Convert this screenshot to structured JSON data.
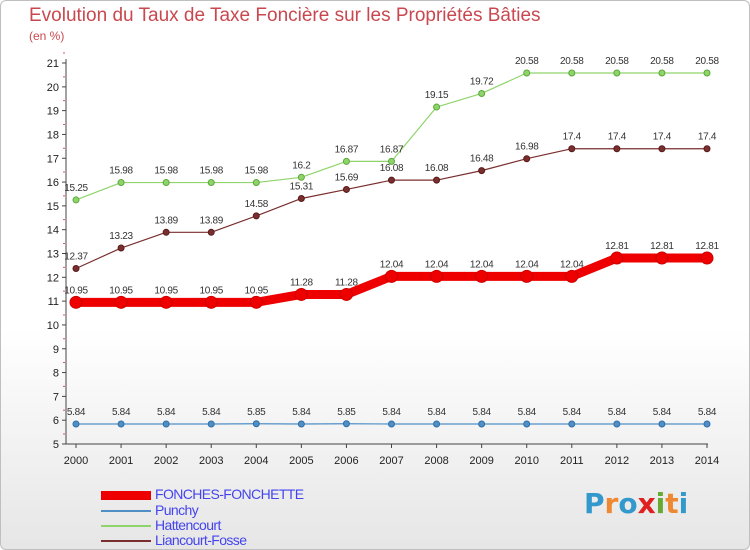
{
  "title": "Evolution du Taux de Taxe Foncière sur les Propriétés Bâties",
  "subtitle": "(en %)",
  "logo": {
    "letters": [
      "P",
      "r",
      "o",
      "x",
      "i",
      "t",
      "i"
    ],
    "colors": [
      "#3399cc",
      "#ee8833",
      "#3399cc",
      "#e02020",
      "#66aa33",
      "#ee8833",
      "#3399cc"
    ]
  },
  "chart_data": {
    "type": "line",
    "title": "Evolution du Taux de Taxe Foncière sur les Propriétés Bâties",
    "ylabel": "(en %)",
    "xlabel": "",
    "x": [
      "2000",
      "2001",
      "2002",
      "2003",
      "2004",
      "2005",
      "2006",
      "2007",
      "2008",
      "2009",
      "2010",
      "2011",
      "2012",
      "2013",
      "2014"
    ],
    "ylim": [
      5,
      21
    ],
    "yticks": [
      "5",
      "6",
      "7",
      "8",
      "9",
      "10",
      "11",
      "12",
      "13",
      "14",
      "15",
      "16",
      "17",
      "18",
      "19",
      "20",
      "21"
    ],
    "series": [
      {
        "name": "FONCHES-FONCHETTE",
        "color": "#ee0000",
        "values": [
          10.95,
          10.95,
          10.95,
          10.95,
          10.95,
          11.28,
          11.28,
          12.04,
          12.04,
          12.04,
          12.04,
          12.04,
          12.81,
          12.81,
          12.81
        ],
        "labels": [
          "10.95",
          "10.95",
          "10.95",
          "10.95",
          "10.95",
          "11.28",
          "11.28",
          "12.04",
          "12.04",
          "12.04",
          "12.04",
          "12.04",
          "12.81",
          "12.81",
          "12.81"
        ]
      },
      {
        "name": "Punchy",
        "color": "#4f8fc6",
        "values": [
          5.84,
          5.84,
          5.84,
          5.84,
          5.85,
          5.84,
          5.85,
          5.84,
          5.84,
          5.84,
          5.84,
          5.84,
          5.84,
          5.84,
          5.84
        ],
        "labels": [
          "5.84",
          "5.84",
          "5.84",
          "5.84",
          "5.85",
          "5.84",
          "5.85",
          "5.84",
          "5.84",
          "5.84",
          "5.84",
          "5.84",
          "5.84",
          "5.84",
          "5.84"
        ]
      },
      {
        "name": "Hattencourt",
        "color": "#8fd46a",
        "values": [
          15.25,
          15.98,
          15.98,
          15.98,
          15.98,
          16.2,
          16.87,
          16.87,
          19.15,
          19.72,
          20.58,
          20.58,
          20.58,
          20.58,
          20.58
        ],
        "labels": [
          "15.25",
          "15.98",
          "15.98",
          "15.98",
          "15.98",
          "16.2",
          "16.87",
          "16.87",
          "19.15",
          "19.72",
          "20.58",
          "20.58",
          "20.58",
          "20.58",
          "20.58"
        ]
      },
      {
        "name": "Liancourt-Fosse",
        "color": "#7a2f2f",
        "values": [
          12.37,
          13.23,
          13.89,
          13.89,
          14.58,
          15.31,
          15.69,
          16.08,
          16.08,
          16.48,
          16.98,
          17.4,
          17.4,
          17.4,
          17.4
        ],
        "labels": [
          "12.37",
          "13.23",
          "13.89",
          "13.89",
          "14.58",
          "15.31",
          "15.69",
          "16.08",
          "16.08",
          "16.48",
          "16.98",
          "17.4",
          "17.4",
          "17.4",
          "17.4"
        ]
      }
    ],
    "legend": [
      "FONCHES-FONCHETTE",
      "Punchy",
      "Hattencourt",
      "Liancourt-Fosse"
    ],
    "legend_position": "bottom-left",
    "grid": false
  }
}
